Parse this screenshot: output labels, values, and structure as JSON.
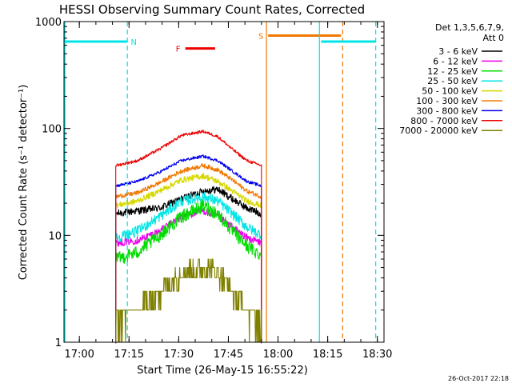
{
  "chart_data": {
    "type": "line",
    "title": "HESSI Observing Summary Count Rates, Corrected",
    "xlabel": "Start Time (26-May-15 16:55:22)",
    "ylabel": "Corrected Count Rate (s⁻¹ detector⁻¹)",
    "x_scale": "time",
    "y_scale": "log",
    "xlim": [
      "16:55:22",
      "18:32:00"
    ],
    "ylim": [
      1,
      1000
    ],
    "x_ticks": [
      "17:00",
      "17:15",
      "17:30",
      "17:45",
      "18:00",
      "18:15",
      "18:30"
    ],
    "y_ticks": [
      1,
      10,
      100,
      1000
    ],
    "y_tick_labels": [
      "1",
      "10",
      "100",
      "1000"
    ],
    "grid": false,
    "legend": {
      "position": "right",
      "header": [
        "Det 1,3,5,6,7,9,",
        "Att 0"
      ]
    },
    "footer_timestamp": "26-Oct-2017 22:18",
    "data_window": [
      "17:11:00",
      "17:55:00"
    ],
    "markers": [
      {
        "label": "N",
        "color": "#00e5e5",
        "bar": [
          "16:55:22",
          "17:14:30"
        ],
        "y": 650,
        "dashed_at": "17:14:30"
      },
      {
        "label": "F",
        "color": "#ee0000",
        "bar": [
          "17:32:00",
          "17:41:00"
        ],
        "y": 560
      },
      {
        "label": "S",
        "color": "#f07800",
        "bar": [
          "17:57:00",
          "18:19:00"
        ],
        "y": 740,
        "solid_at": "17:56:30",
        "dashed_at": "18:19:30"
      },
      {
        "label": "",
        "color": "#00e5e5",
        "bar": [
          "18:13:00",
          "18:29:30"
        ],
        "y": 650,
        "solid_at": "18:12:30",
        "dashed_at": "18:29:30"
      }
    ],
    "series": [
      {
        "name": "3 - 6 keV",
        "color": "#000000",
        "shape": [
          [
            0,
            16
          ],
          [
            0.15,
            17
          ],
          [
            0.3,
            18
          ],
          [
            0.45,
            22
          ],
          [
            0.6,
            26
          ],
          [
            0.7,
            27
          ],
          [
            0.8,
            22
          ],
          [
            0.9,
            18
          ],
          [
            1,
            16
          ]
        ],
        "noise": 0.05
      },
      {
        "name": "6 - 12 keV",
        "color": "#ee00ee",
        "shape": [
          [
            0,
            8.5
          ],
          [
            0.15,
            9
          ],
          [
            0.3,
            11
          ],
          [
            0.45,
            15
          ],
          [
            0.6,
            17
          ],
          [
            0.7,
            15
          ],
          [
            0.8,
            12
          ],
          [
            0.9,
            9.5
          ],
          [
            1,
            8.5
          ]
        ],
        "noise": 0.05
      },
      {
        "name": "12 - 25 keV",
        "color": "#00dd00",
        "shape": [
          [
            0,
            6
          ],
          [
            0.15,
            7
          ],
          [
            0.3,
            10
          ],
          [
            0.45,
            15
          ],
          [
            0.6,
            19
          ],
          [
            0.7,
            16
          ],
          [
            0.8,
            11
          ],
          [
            0.9,
            8
          ],
          [
            1,
            6.5
          ]
        ],
        "noise": 0.09
      },
      {
        "name": "25 - 50 keV",
        "color": "#00e5e5",
        "shape": [
          [
            0,
            9.5
          ],
          [
            0.15,
            11
          ],
          [
            0.3,
            15
          ],
          [
            0.45,
            21
          ],
          [
            0.6,
            23
          ],
          [
            0.7,
            21
          ],
          [
            0.8,
            16
          ],
          [
            0.9,
            12
          ],
          [
            1,
            10
          ]
        ],
        "noise": 0.07
      },
      {
        "name": "50 - 100 keV",
        "color": "#d7d700",
        "shape": [
          [
            0,
            19
          ],
          [
            0.15,
            21
          ],
          [
            0.3,
            26
          ],
          [
            0.45,
            33
          ],
          [
            0.6,
            36
          ],
          [
            0.7,
            32
          ],
          [
            0.8,
            26
          ],
          [
            0.9,
            21
          ],
          [
            1,
            19
          ]
        ],
        "noise": 0.04
      },
      {
        "name": "100 - 300 keV",
        "color": "#f07800",
        "shape": [
          [
            0,
            23
          ],
          [
            0.15,
            25
          ],
          [
            0.3,
            31
          ],
          [
            0.45,
            40
          ],
          [
            0.6,
            45
          ],
          [
            0.7,
            41
          ],
          [
            0.8,
            33
          ],
          [
            0.9,
            26
          ],
          [
            1,
            23
          ]
        ],
        "noise": 0.03
      },
      {
        "name": "300 - 800 keV",
        "color": "#0000ee",
        "shape": [
          [
            0,
            29
          ],
          [
            0.15,
            32
          ],
          [
            0.3,
            39
          ],
          [
            0.45,
            50
          ],
          [
            0.6,
            55
          ],
          [
            0.7,
            50
          ],
          [
            0.8,
            40
          ],
          [
            0.9,
            32
          ],
          [
            1,
            29
          ]
        ],
        "noise": 0.02
      },
      {
        "name": "800 - 7000 keV",
        "color": "#ee0000",
        "shape": [
          [
            0,
            45
          ],
          [
            0.15,
            50
          ],
          [
            0.3,
            64
          ],
          [
            0.45,
            86
          ],
          [
            0.6,
            94
          ],
          [
            0.7,
            84
          ],
          [
            0.8,
            64
          ],
          [
            0.9,
            50
          ],
          [
            1,
            45
          ]
        ],
        "noise": 0.02
      },
      {
        "name": "7000 - 20000 keV",
        "color": "#808000",
        "shape": [
          [
            0,
            1.6
          ],
          [
            0.15,
            2
          ],
          [
            0.3,
            3
          ],
          [
            0.45,
            4.5
          ],
          [
            0.6,
            5
          ],
          [
            0.7,
            4.5
          ],
          [
            0.8,
            3
          ],
          [
            0.9,
            2
          ],
          [
            1,
            1.6
          ]
        ],
        "noise": 0.15
      }
    ]
  }
}
